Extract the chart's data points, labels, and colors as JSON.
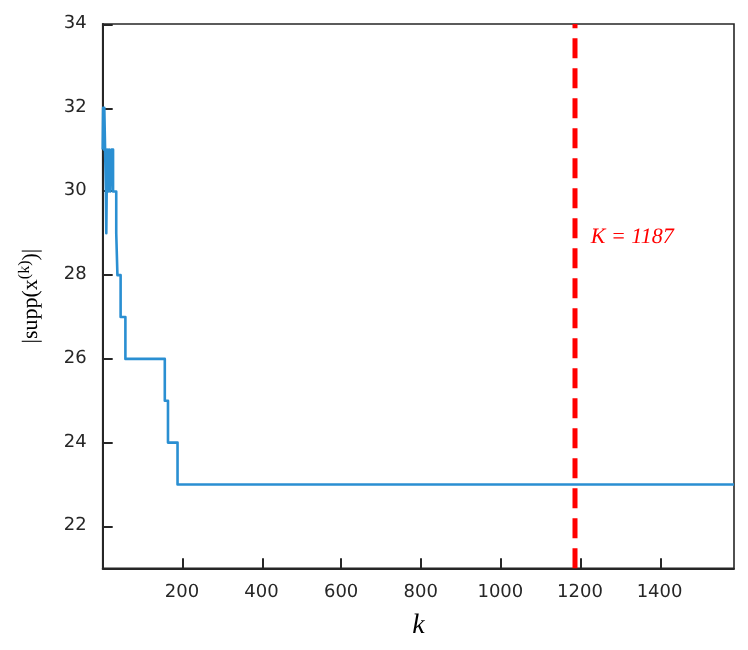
{
  "chart_data": {
    "type": "step",
    "xlabel": "k",
    "ylabel": "|supp(x$^{(k)}$)|",
    "x": [
      1,
      2,
      4,
      5,
      7,
      9,
      10,
      12,
      15,
      17,
      20,
      23,
      27,
      35,
      38,
      46,
      58,
      157,
      165,
      189,
      1587
    ],
    "series": [
      {
        "color": "#2a8fd2",
        "values": [
          31,
          32,
          31,
          32,
          31,
          30,
          29,
          31,
          30,
          31,
          30,
          31,
          30,
          29,
          28,
          27,
          26,
          25,
          24,
          23,
          23
        ]
      }
    ],
    "xlim": [
      1,
      1587
    ],
    "xticks": [
      200,
      400,
      600,
      800,
      1000,
      1200,
      1400
    ],
    "ylim": [
      21,
      34
    ],
    "yticks": [
      22,
      24,
      26,
      28,
      30,
      32,
      34
    ],
    "ref_lines": [
      {
        "axis": "x",
        "value": 1187,
        "label": "K = 1187",
        "color": "#ff0000",
        "line_style": "dashed"
      }
    ],
    "grid": false,
    "marker": "none",
    "line_style": "solid"
  }
}
